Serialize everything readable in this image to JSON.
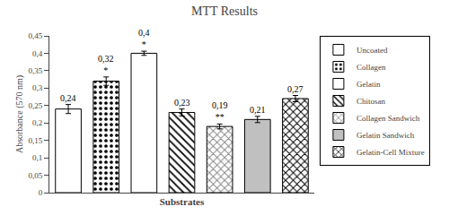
{
  "chart_data": {
    "type": "bar",
    "title": "MTT Results",
    "xlabel": "Substrates",
    "ylabel": "Absorbance (570 nm)",
    "categories": [
      "Uncoated",
      "Collagen",
      "Gelatin",
      "Chitosan",
      "Collagen Sandwich",
      "Gelatin Sandwich",
      "Gelatin-Cell Mixture"
    ],
    "values": [
      0.24,
      0.32,
      0.4,
      0.23,
      0.19,
      0.21,
      0.27
    ],
    "errors": [
      0.013,
      0.012,
      0.006,
      0.01,
      0.007,
      0.009,
      0.009
    ],
    "data_labels": true,
    "value_labels": [
      "0,24",
      "0,32",
      "0,4",
      "0,23",
      "0,19",
      "0,21",
      "0,27"
    ],
    "significance": [
      null,
      "*",
      "*",
      null,
      "**",
      null,
      null
    ],
    "colors": [
      "#101010",
      "#f5f5f5",
      "#707070",
      "#cccccc",
      "#0d0d0d",
      "#c0c0c0",
      "#d0d0d0"
    ],
    "ylim": [
      0,
      0.45
    ],
    "yticks": [
      0,
      {
        "value": 0.05,
        "label": "0,05"
      },
      {
        "value": 0.1,
        "label": "0,1"
      },
      {
        "value": 0.15,
        "label": "0,15"
      },
      {
        "value": 0.2,
        "label": "0,2"
      },
      {
        "value": 0.25,
        "label": "0,25"
      },
      {
        "value": 0.3,
        "label": "0,3"
      },
      {
        "value": 0.35,
        "label": "0,35"
      },
      {
        "value": 0.4,
        "label": "0,4"
      },
      {
        "value": 0.45,
        "label": "0,45"
      }
    ],
    "grid": false,
    "legend": "right",
    "tick_labels": "y"
  }
}
